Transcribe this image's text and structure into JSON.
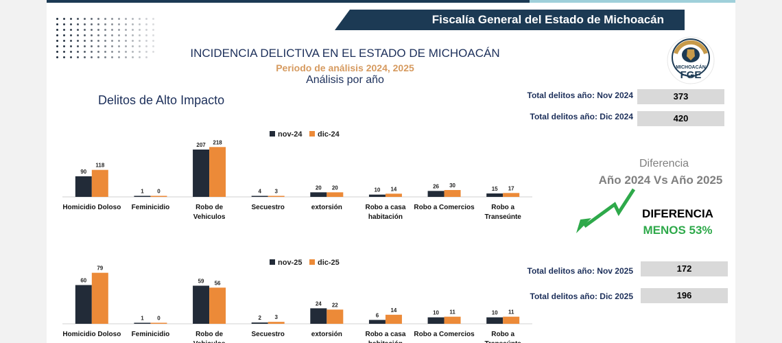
{
  "header": {
    "banner": "Fiscalía General del Estado de Michoacán",
    "title": "INCIDENCIA DELICTIVA EN EL ESTADO DE MICHOACÁN",
    "period": "Periodo de análisis 2024, 2025",
    "analysis": "Análisis por año",
    "section": "Delitos de Alto Impacto"
  },
  "logo": {
    "ring_text": "FISCALÍA GENERAL DEL ESTADO",
    "state": "MICHOACÁN",
    "abbr": "FGE"
  },
  "totals": {
    "nov_2024_label": "Total delitos año: Nov 2024",
    "nov_2024_value": "373",
    "dic_2024_label": "Total delitos año: Dic 2024",
    "dic_2024_value": "420",
    "nov_2025_label": "Total delitos año: Nov 2025",
    "nov_2025_value": "172",
    "dic_2025_label": "Total delitos año: Dic 2025",
    "dic_2025_value": "196"
  },
  "difference": {
    "title": "Diferencia",
    "subtitle": "Año 2024 Vs Año 2025",
    "label": "DIFERENCIA",
    "value": "MENOS 53%"
  },
  "colors": {
    "navy": "#1c3a54",
    "series_dark": "#222b38",
    "series_orange": "#ec8a38",
    "green": "#2ea94a"
  },
  "chart_data": [
    {
      "type": "bar",
      "title": "Delitos de Alto Impacto",
      "categories": [
        "Homicidio Doloso",
        "Feminicidio",
        "Robo de Vehiculos",
        "Secuestro",
        "extorsión",
        "Robo a casa habitación",
        "Robo a Comercios",
        "Robo a Transeúnte"
      ],
      "series": [
        {
          "name": "nov-24",
          "values": [
            90,
            1,
            207,
            4,
            20,
            10,
            26,
            15
          ]
        },
        {
          "name": "dic-24",
          "values": [
            118,
            0,
            218,
            3,
            20,
            14,
            30,
            17
          ]
        }
      ],
      "ylim": [
        0,
        240
      ],
      "legend": "top-center"
    },
    {
      "type": "bar",
      "categories": [
        "Homicidio Doloso",
        "Feminicidio",
        "Robo de Vehiculos",
        "Secuestro",
        "extorsión",
        "Robo a casa habitación",
        "Robo a Comercios",
        "Robo a Transeúnte"
      ],
      "series": [
        {
          "name": "nov-25",
          "values": [
            60,
            1,
            59,
            2,
            24,
            6,
            10,
            10
          ]
        },
        {
          "name": "dic-25",
          "values": [
            79,
            0,
            56,
            3,
            22,
            14,
            11,
            11
          ]
        }
      ],
      "ylim": [
        0,
        85
      ],
      "legend": "top-center"
    }
  ]
}
